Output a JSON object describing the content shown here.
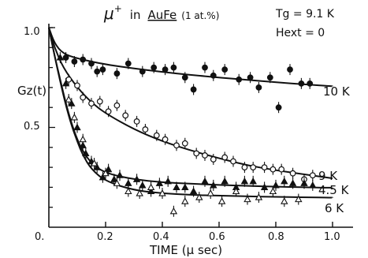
{
  "chart_data": {
    "type": "scatter",
    "title": "μ⁺ in AuFe (1 at.%)",
    "title_parts": {
      "particle": "μ",
      "charge": "+",
      "in": "in",
      "sample": "AuFe",
      "conc": "(1 at.%)"
    },
    "annotations": {
      "tg": "Tg = 9.1 K",
      "hext": "Hext = 0"
    },
    "xlabel": "TIME (μ sec)",
    "ylabel": "Gz(t)",
    "xlim": [
      0,
      1.0
    ],
    "ylim": [
      0,
      1.0
    ],
    "x_tick_labels": [
      "0.",
      "0.2",
      "0.4",
      "0.6",
      "0.8",
      "1.0"
    ],
    "x_tick_values": [
      0,
      0.2,
      0.4,
      0.6,
      0.8,
      1.0
    ],
    "y_tick_labels": [
      "0.5",
      "1.0"
    ],
    "y_tick_values": [
      0.5,
      1.0
    ],
    "grid": false,
    "series": [
      {
        "name": "10 K",
        "marker": "filled-circle",
        "points": [
          [
            0.06,
            0.85
          ],
          [
            0.09,
            0.83
          ],
          [
            0.12,
            0.84
          ],
          [
            0.15,
            0.82
          ],
          [
            0.17,
            0.78
          ],
          [
            0.19,
            0.79
          ],
          [
            0.24,
            0.77
          ],
          [
            0.28,
            0.82
          ],
          [
            0.33,
            0.78
          ],
          [
            0.37,
            0.8
          ],
          [
            0.41,
            0.79
          ],
          [
            0.44,
            0.8
          ],
          [
            0.48,
            0.75
          ],
          [
            0.51,
            0.69
          ],
          [
            0.55,
            0.8
          ],
          [
            0.58,
            0.76
          ],
          [
            0.62,
            0.79
          ],
          [
            0.67,
            0.74
          ],
          [
            0.71,
            0.75
          ],
          [
            0.74,
            0.7
          ],
          [
            0.78,
            0.75
          ],
          [
            0.81,
            0.6
          ],
          [
            0.85,
            0.79
          ],
          [
            0.89,
            0.72
          ],
          [
            0.92,
            0.72
          ]
        ],
        "fit": [
          [
            0,
            1.0
          ],
          [
            0.02,
            0.92
          ],
          [
            0.05,
            0.87
          ],
          [
            0.1,
            0.845
          ],
          [
            0.2,
            0.815
          ],
          [
            0.3,
            0.795
          ],
          [
            0.4,
            0.778
          ],
          [
            0.5,
            0.763
          ],
          [
            0.6,
            0.75
          ],
          [
            0.7,
            0.738
          ],
          [
            0.8,
            0.726
          ],
          [
            0.9,
            0.716
          ],
          [
            1.0,
            0.706
          ]
        ]
      },
      {
        "name": "9 K",
        "marker": "open-circle",
        "points": [
          [
            0.07,
            0.74
          ],
          [
            0.1,
            0.71
          ],
          [
            0.12,
            0.65
          ],
          [
            0.15,
            0.62
          ],
          [
            0.18,
            0.63
          ],
          [
            0.21,
            0.58
          ],
          [
            0.24,
            0.61
          ],
          [
            0.27,
            0.56
          ],
          [
            0.31,
            0.53
          ],
          [
            0.34,
            0.49
          ],
          [
            0.38,
            0.46
          ],
          [
            0.41,
            0.44
          ],
          [
            0.45,
            0.41
          ],
          [
            0.48,
            0.42
          ],
          [
            0.52,
            0.37
          ],
          [
            0.55,
            0.36
          ],
          [
            0.58,
            0.34
          ],
          [
            0.62,
            0.35
          ],
          [
            0.65,
            0.33
          ],
          [
            0.69,
            0.3
          ],
          [
            0.72,
            0.3
          ],
          [
            0.76,
            0.3
          ],
          [
            0.79,
            0.29
          ],
          [
            0.82,
            0.29
          ],
          [
            0.86,
            0.27
          ],
          [
            0.9,
            0.24
          ],
          [
            0.93,
            0.26
          ]
        ],
        "fit": [
          [
            0,
            1.0
          ],
          [
            0.02,
            0.9
          ],
          [
            0.05,
            0.8
          ],
          [
            0.1,
            0.7
          ],
          [
            0.15,
            0.625
          ],
          [
            0.2,
            0.57
          ],
          [
            0.3,
            0.49
          ],
          [
            0.4,
            0.43
          ],
          [
            0.5,
            0.385
          ],
          [
            0.6,
            0.345
          ],
          [
            0.7,
            0.31
          ],
          [
            0.8,
            0.285
          ],
          [
            0.9,
            0.265
          ],
          [
            1.0,
            0.245
          ]
        ]
      },
      {
        "name": "4.5 K",
        "marker": "filled-triangle",
        "points": [
          [
            0.04,
            0.85
          ],
          [
            0.06,
            0.72
          ],
          [
            0.08,
            0.62
          ],
          [
            0.1,
            0.5
          ],
          [
            0.12,
            0.41
          ],
          [
            0.13,
            0.37
          ],
          [
            0.15,
            0.33
          ],
          [
            0.17,
            0.3
          ],
          [
            0.19,
            0.25
          ],
          [
            0.21,
            0.29
          ],
          [
            0.23,
            0.24
          ],
          [
            0.25,
            0.26
          ],
          [
            0.28,
            0.22
          ],
          [
            0.31,
            0.24
          ],
          [
            0.33,
            0.21
          ],
          [
            0.36,
            0.18
          ],
          [
            0.39,
            0.22
          ],
          [
            0.42,
            0.23
          ],
          [
            0.45,
            0.2
          ],
          [
            0.48,
            0.2
          ],
          [
            0.51,
            0.18
          ],
          [
            0.55,
            0.23
          ],
          [
            0.58,
            0.21
          ],
          [
            0.62,
            0.23
          ],
          [
            0.66,
            0.2
          ],
          [
            0.69,
            0.23
          ],
          [
            0.72,
            0.23
          ],
          [
            0.76,
            0.2
          ],
          [
            0.8,
            0.21
          ],
          [
            0.83,
            0.23
          ],
          [
            0.86,
            0.22
          ],
          [
            0.9,
            0.22
          ],
          [
            0.93,
            0.21
          ]
        ],
        "fit": [
          [
            0,
            1.0
          ],
          [
            0.02,
            0.86
          ],
          [
            0.04,
            0.74
          ],
          [
            0.06,
            0.62
          ],
          [
            0.08,
            0.52
          ],
          [
            0.1,
            0.44
          ],
          [
            0.12,
            0.38
          ],
          [
            0.15,
            0.32
          ],
          [
            0.2,
            0.27
          ],
          [
            0.3,
            0.24
          ],
          [
            0.4,
            0.225
          ],
          [
            0.5,
            0.218
          ],
          [
            0.6,
            0.212
          ],
          [
            0.7,
            0.207
          ],
          [
            0.8,
            0.203
          ],
          [
            0.9,
            0.2
          ],
          [
            1.0,
            0.198
          ]
        ]
      },
      {
        "name": "6 K",
        "marker": "open-triangle",
        "points": [
          [
            0.07,
            0.64
          ],
          [
            0.09,
            0.55
          ],
          [
            0.12,
            0.44
          ],
          [
            0.16,
            0.32
          ],
          [
            0.2,
            0.27
          ],
          [
            0.24,
            0.22
          ],
          [
            0.28,
            0.18
          ],
          [
            0.32,
            0.17
          ],
          [
            0.36,
            0.2
          ],
          [
            0.4,
            0.17
          ],
          [
            0.44,
            0.08
          ],
          [
            0.48,
            0.13
          ],
          [
            0.53,
            0.15
          ],
          [
            0.57,
            0.17
          ],
          [
            0.61,
            0.13
          ],
          [
            0.66,
            0.18
          ],
          [
            0.7,
            0.14
          ],
          [
            0.74,
            0.15
          ],
          [
            0.79,
            0.18
          ],
          [
            0.83,
            0.13
          ],
          [
            0.88,
            0.14
          ]
        ],
        "fit": [
          [
            0,
            1.0
          ],
          [
            0.02,
            0.86
          ],
          [
            0.04,
            0.73
          ],
          [
            0.06,
            0.61
          ],
          [
            0.08,
            0.51
          ],
          [
            0.1,
            0.43
          ],
          [
            0.12,
            0.36
          ],
          [
            0.15,
            0.29
          ],
          [
            0.2,
            0.23
          ],
          [
            0.3,
            0.185
          ],
          [
            0.4,
            0.17
          ],
          [
            0.5,
            0.162
          ],
          [
            0.6,
            0.158
          ],
          [
            0.7,
            0.155
          ],
          [
            0.8,
            0.152
          ],
          [
            0.9,
            0.15
          ],
          [
            1.0,
            0.148
          ]
        ]
      }
    ]
  }
}
